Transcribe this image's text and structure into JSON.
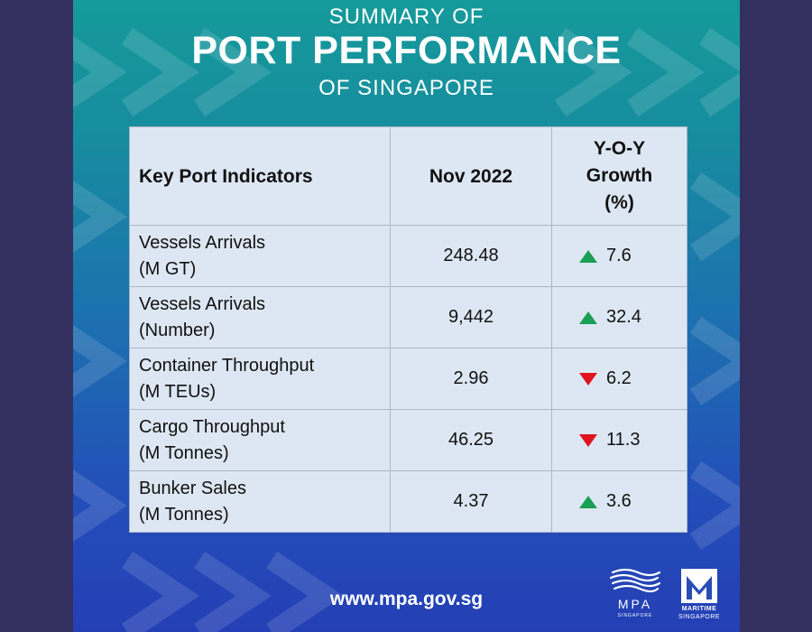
{
  "header": {
    "line1": "SUMMARY OF",
    "line2": "PORT PERFORMANCE",
    "line3": "OF SINGAPORE"
  },
  "table": {
    "columns": [
      "Key Port Indicators",
      "Nov 2022",
      "Y-O-Y",
      "Growth",
      "(%)"
    ],
    "rows": [
      {
        "line1": "Vessels Arrivals",
        "line2": "(M GT)",
        "value": "248.48",
        "trend": "up",
        "growth": "7.6"
      },
      {
        "line1": "Vessels Arrivals",
        "line2": "(Number)",
        "value": "9,442",
        "trend": "up",
        "growth": "32.4"
      },
      {
        "line1": "Container Throughput",
        "line2": "(M TEUs)",
        "value": "2.96",
        "trend": "down",
        "growth": "6.2"
      },
      {
        "line1": "Cargo Throughput",
        "line2": "(M Tonnes)",
        "value": "46.25",
        "trend": "down",
        "growth": "11.3"
      },
      {
        "line1": "Bunker Sales",
        "line2": "(M Tonnes)",
        "value": "4.37",
        "trend": "up",
        "growth": "3.6"
      }
    ],
    "colors": {
      "up": "#1aa054",
      "down": "#e0141e"
    }
  },
  "footer": {
    "url": "www.mpa.gov.sg",
    "logo_mpa": "MPA",
    "logo_mpa_sub": "SINGAPORE",
    "logo_ms_line1": "MARITIME",
    "logo_ms_line2": "SINGAPORE"
  }
}
